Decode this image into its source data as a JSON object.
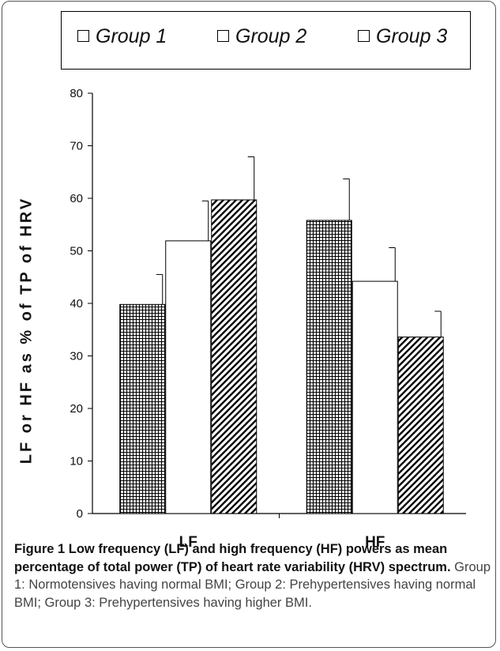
{
  "legend": [
    {
      "label": "Group 1"
    },
    {
      "label": "Group 2"
    },
    {
      "label": "Group 3"
    }
  ],
  "chart_data": {
    "type": "bar",
    "categories": [
      "LF",
      "HF"
    ],
    "series": [
      {
        "name": "Group 1",
        "values": [
          39.8,
          55.8
        ],
        "errors": [
          5.7,
          7.9
        ],
        "pattern": "grid"
      },
      {
        "name": "Group 2",
        "values": [
          51.9,
          44.2
        ],
        "errors": [
          7.6,
          6.4
        ],
        "pattern": "none"
      },
      {
        "name": "Group 3",
        "values": [
          59.7,
          33.6
        ],
        "errors": [
          8.2,
          4.9
        ],
        "pattern": "diagonal"
      }
    ],
    "ylim": [
      0,
      80
    ],
    "yticks": [
      "0",
      "10",
      "20",
      "30",
      "40",
      "50",
      "60",
      "70",
      "80"
    ],
    "ylabel": "LF or HF as % of TP of HRV",
    "xlabel": "",
    "grid": false,
    "legend_position": "top"
  },
  "caption": {
    "title": "Figure 1 Low frequency (LF) and high frequency (HF) powers as mean percentage of total power (TP) of heart rate variability (HRV) spectrum.",
    "body": "Group 1: Normotensives having normal BMI; Group 2: Prehypertensives having normal BMI; Group 3: Prehypertensives having higher BMI."
  }
}
